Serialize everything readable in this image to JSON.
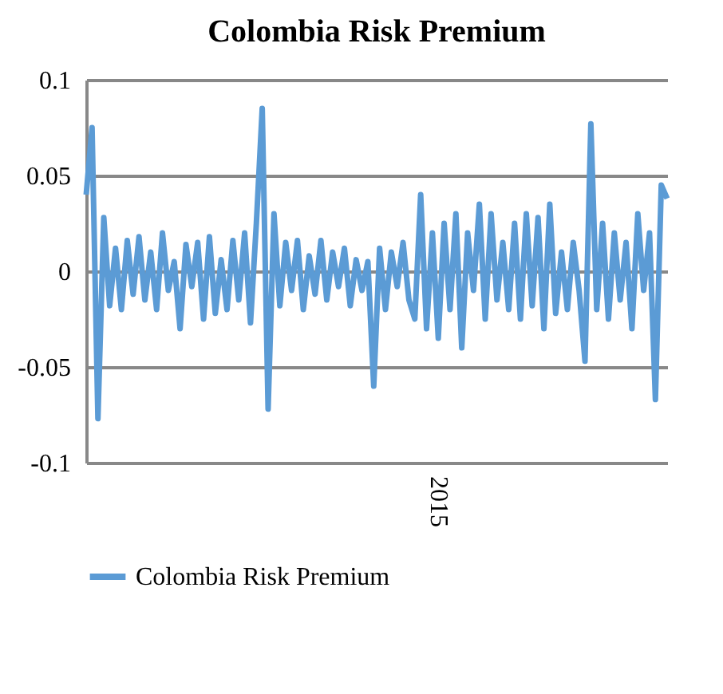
{
  "chart_data": {
    "type": "line",
    "title": "Colombia Risk Premium",
    "categories": [
      null,
      null,
      null,
      null,
      null,
      null,
      null,
      null,
      null,
      null,
      null,
      null,
      null,
      null,
      null,
      null,
      null,
      null,
      null,
      null,
      null,
      null,
      null,
      null,
      null,
      null,
      null,
      null,
      null,
      null,
      null,
      null,
      null,
      null,
      null,
      null,
      null,
      null,
      null,
      null,
      null,
      null,
      null,
      null,
      null,
      null,
      null,
      null,
      null,
      null,
      null,
      null,
      null,
      null,
      null,
      null,
      null,
      null,
      null,
      null,
      "2015",
      null,
      null,
      null,
      null,
      null,
      null,
      null,
      null,
      null,
      null,
      null,
      null,
      null,
      null,
      null,
      null,
      null,
      null,
      null,
      null,
      null,
      null,
      null,
      null,
      null,
      null,
      null,
      null,
      null,
      null,
      null,
      null,
      null,
      null,
      null,
      null,
      null,
      null,
      null
    ],
    "series": [
      {
        "name": "Colombia Risk Premium",
        "color": "#5b9bd5",
        "values": [
          0.04,
          0.075,
          -0.077,
          0.028,
          -0.018,
          0.012,
          -0.02,
          0.016,
          -0.012,
          0.018,
          -0.015,
          0.01,
          -0.02,
          0.02,
          -0.01,
          0.005,
          -0.03,
          0.014,
          -0.008,
          0.015,
          -0.025,
          0.018,
          -0.022,
          0.006,
          -0.02,
          0.016,
          -0.015,
          0.02,
          -0.027,
          0.025,
          0.085,
          -0.072,
          0.03,
          -0.018,
          0.015,
          -0.01,
          0.016,
          -0.02,
          0.008,
          -0.012,
          0.016,
          -0.015,
          0.01,
          -0.008,
          0.012,
          -0.018,
          0.006,
          -0.01,
          0.005,
          -0.06,
          0.012,
          -0.02,
          0.01,
          -0.008,
          0.015,
          -0.015,
          -0.025,
          0.04,
          -0.03,
          0.02,
          -0.035,
          0.025,
          -0.02,
          0.03,
          -0.04,
          0.02,
          -0.01,
          0.035,
          -0.025,
          0.03,
          -0.015,
          0.015,
          -0.02,
          0.025,
          -0.025,
          0.03,
          -0.018,
          0.028,
          -0.03,
          0.035,
          -0.022,
          0.01,
          -0.02,
          0.015,
          -0.01,
          -0.047,
          0.077,
          -0.02,
          0.025,
          -0.025,
          0.02,
          -0.015,
          0.015,
          -0.03,
          0.03,
          -0.01,
          0.02,
          -0.067,
          0.045,
          0.038
        ]
      }
    ],
    "ylim": [
      -0.1,
      0.1
    ],
    "yticks": [
      -0.1,
      -0.05,
      0,
      0.05,
      0.1
    ],
    "grid": "y",
    "legend": "bottom",
    "line_style": "solid"
  }
}
